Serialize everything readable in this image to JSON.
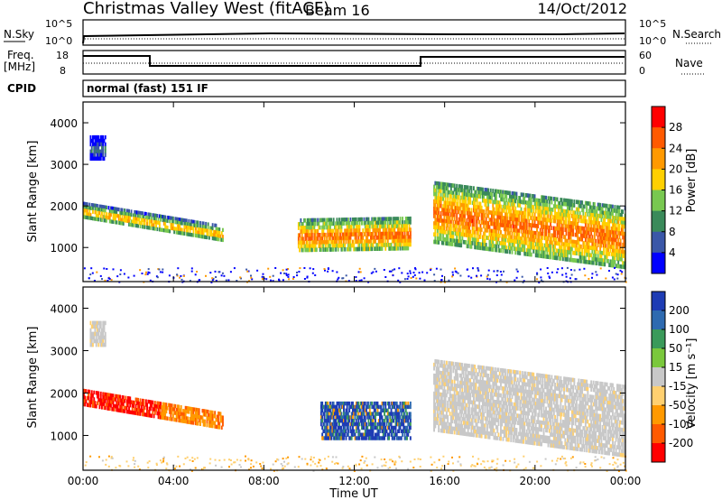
{
  "header": {
    "title": "Christmas Valley West (fitACF)",
    "beam": "Beam 16",
    "date": "14/Oct/2012"
  },
  "status_panels": {
    "nsky": {
      "label": "N.Sky",
      "tick_top": "10^5",
      "tick_bottom": "10^0"
    },
    "nsearch": {
      "label": "N.Search",
      "tick_top": "10^5",
      "tick_bottom": "10^0"
    },
    "freq": {
      "label_line1": "Freq.",
      "label_line2": "[MHz]",
      "tick_top": "18",
      "tick_bottom": "8"
    },
    "nave": {
      "label": "Nave",
      "tick_top": "60",
      "tick_bottom": "0"
    },
    "cpid": {
      "label": "CPID",
      "mode": "normal (fast) 151 IF"
    }
  },
  "chart_data": [
    {
      "type": "heatmap",
      "name": "power",
      "ylabel": "Slant Range [km]",
      "xlim": [
        0,
        24
      ],
      "ylim": [
        180,
        4500
      ],
      "yticks": [
        1000,
        2000,
        3000,
        4000
      ],
      "colorbar": {
        "label": "Power [dB]",
        "ticks": [
          "28",
          "24",
          "20",
          "16",
          "12",
          "8",
          "4"
        ],
        "colors": [
          "#ff0000",
          "#ff5a00",
          "#ff9900",
          "#ffd000",
          "#78c850",
          "#3a8a5a",
          "#3a57a8",
          "#0000ff"
        ]
      },
      "features": [
        {
          "t0": 0.3,
          "t1": 1.0,
          "r0": 3100,
          "r1": 3700,
          "level": 5,
          "slope": 0
        },
        {
          "t0": 0.0,
          "t1": 6.2,
          "r0": 1700,
          "r1": 2100,
          "level": 2,
          "slope": -0.5
        },
        {
          "t0": 9.5,
          "t1": 14.5,
          "r0": 900,
          "r1": 1700,
          "level": 1,
          "slope": 0.05
        },
        {
          "t0": 15.5,
          "t1": 24.0,
          "r0": 1100,
          "r1": 2600,
          "level": 1,
          "slope": -0.4
        }
      ]
    },
    {
      "type": "heatmap",
      "name": "velocity",
      "xlabel": "Time UT",
      "ylabel": "Slant Range [km]",
      "xlim": [
        0,
        24
      ],
      "ylim": [
        180,
        4500
      ],
      "xticks": [
        "00:00",
        "04:00",
        "08:00",
        "12:00",
        "16:00",
        "20:00",
        "00:00"
      ],
      "yticks": [
        1000,
        2000,
        3000,
        4000
      ],
      "colorbar": {
        "label": "Velocity [m s⁻¹]",
        "ticks": [
          "200",
          "100",
          "50",
          "15",
          "-15",
          "-50",
          "-100",
          "-200"
        ],
        "colors": [
          "#1e3cb4",
          "#2e6ab0",
          "#3a9a5a",
          "#7ac83c",
          "#c8c8c8",
          "#ffd070",
          "#ff9900",
          "#ff5a00",
          "#ff0000"
        ]
      },
      "features": [
        {
          "t0": 0.3,
          "t1": 1.0,
          "r0": 3100,
          "r1": 3700,
          "level": "ground",
          "slope": 0
        },
        {
          "t0": 0.0,
          "t1": 6.2,
          "r0": 1700,
          "r1": 2100,
          "level": "red_to_orange",
          "slope": -0.5
        },
        {
          "t0": 10.5,
          "t1": 14.5,
          "r0": 900,
          "r1": 1800,
          "level": "blue_green",
          "slope": 0
        },
        {
          "t0": 15.5,
          "t1": 24.0,
          "r0": 1100,
          "r1": 2800,
          "level": "ground",
          "slope": -0.4
        }
      ]
    }
  ]
}
